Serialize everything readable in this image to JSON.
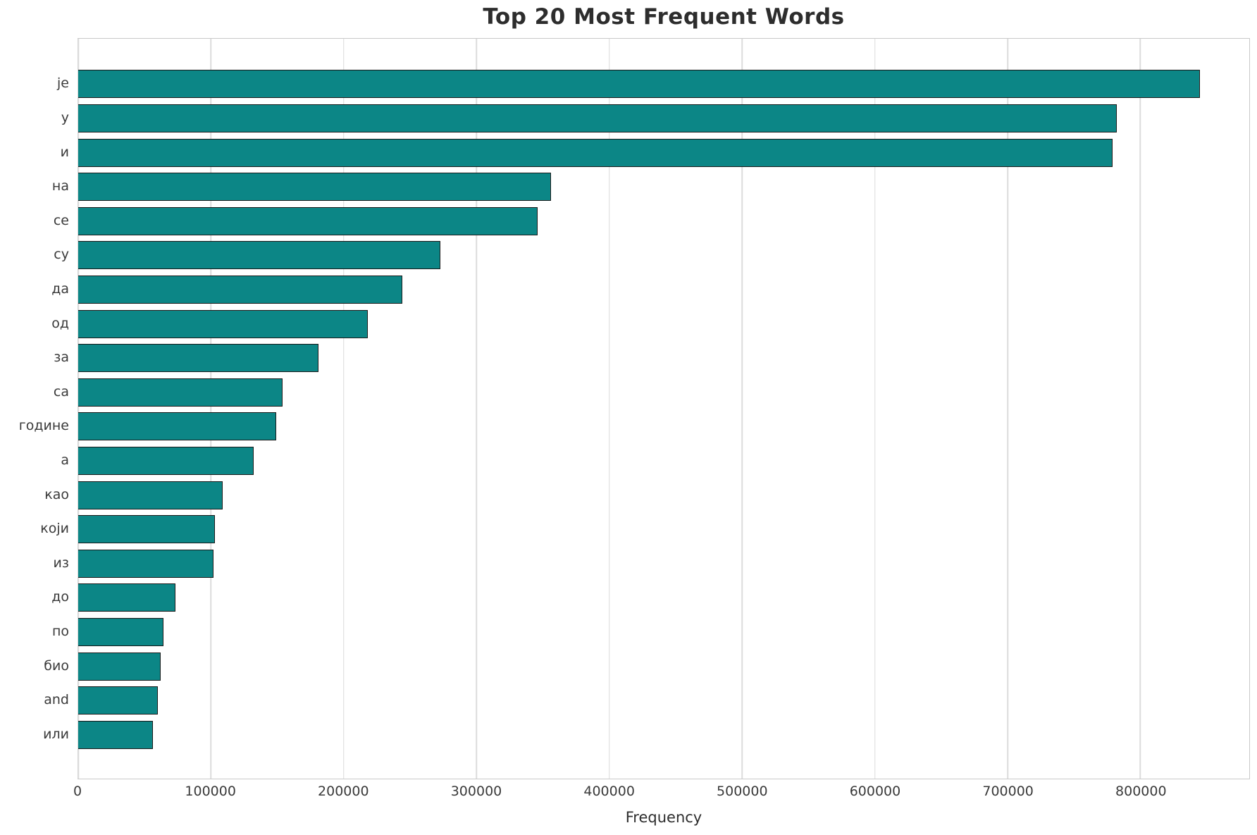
{
  "chart_data": {
    "type": "bar",
    "orientation": "horizontal",
    "title": "Top 20 Most Frequent Words",
    "xlabel": "Frequency",
    "ylabel": "",
    "categories": [
      "је",
      "у",
      "и",
      "на",
      "се",
      "су",
      "да",
      "од",
      "за",
      "са",
      "године",
      "а",
      "као",
      "који",
      "из",
      "до",
      "по",
      "био",
      "and",
      "или"
    ],
    "values": [
      845000,
      782000,
      779000,
      356000,
      346000,
      273000,
      244000,
      218000,
      181000,
      154000,
      149000,
      132000,
      109000,
      103000,
      102000,
      73000,
      64000,
      62000,
      60000,
      56000
    ],
    "xlim": [
      0,
      882000
    ],
    "xticks": [
      0,
      100000,
      200000,
      300000,
      400000,
      500000,
      600000,
      700000,
      800000
    ],
    "grid": true,
    "legend_position": "none",
    "bar_color": "#0c8686",
    "bar_edge_color": "#1a1a1a",
    "grid_color": "#dcdcdc"
  }
}
